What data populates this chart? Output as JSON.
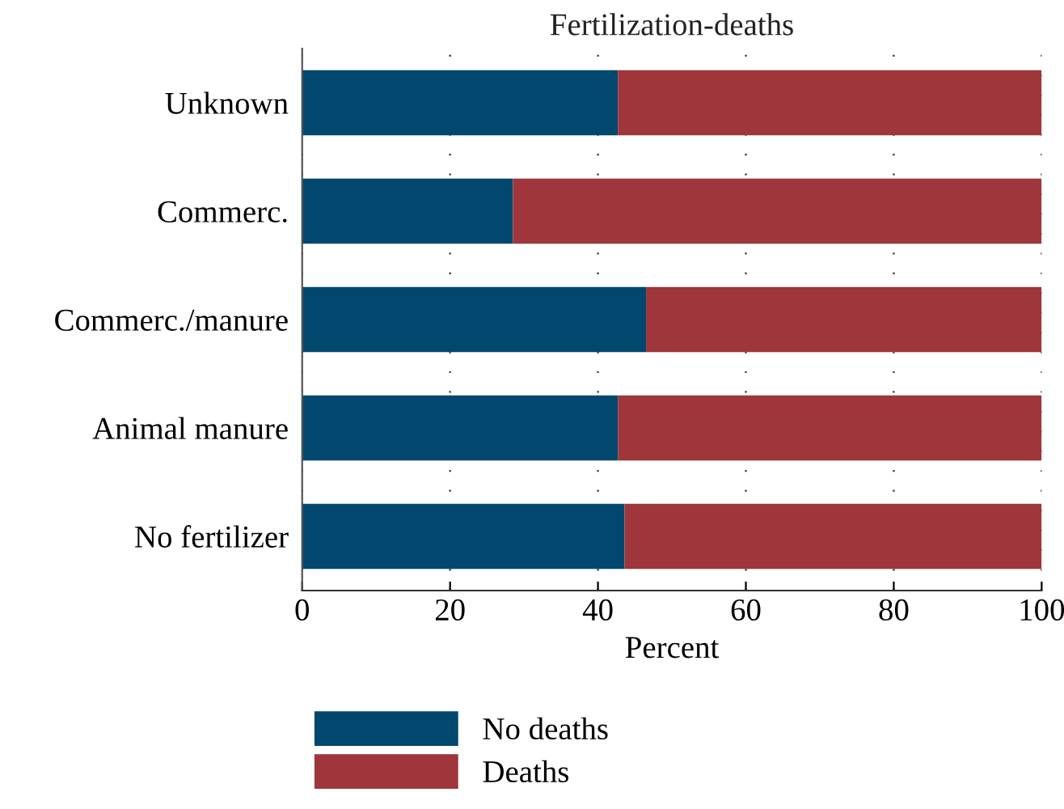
{
  "chart_data": {
    "type": "bar",
    "orientation": "horizontal",
    "stacked": true,
    "title": "Fertilization-deaths",
    "xlabel": "Percent",
    "categories": [
      "Unknown",
      "Commerc.",
      "Commerc./manure",
      "Animal manure",
      "No fertilizer"
    ],
    "series": [
      {
        "name": "No deaths",
        "color": "#02486e",
        "values": [
          42.7,
          28.5,
          46.5,
          42.7,
          43.6
        ]
      },
      {
        "name": "Deaths",
        "color": "#9e363b",
        "values": [
          57.3,
          71.5,
          53.5,
          57.3,
          56.4
        ]
      }
    ],
    "xlim": [
      0,
      100
    ],
    "xticks": [
      0,
      20,
      40,
      60,
      80,
      100
    ],
    "grid": "x",
    "legend": "bottom"
  }
}
